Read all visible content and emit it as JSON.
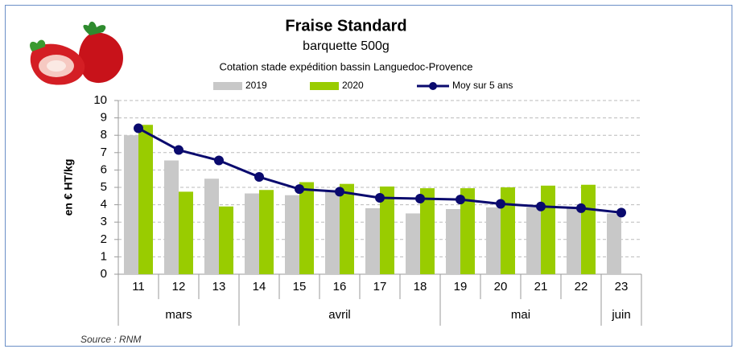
{
  "chart_data": {
    "type": "bar-line",
    "title": "Fraise Standard",
    "subtitle": "barquette 500g",
    "description": "Cotation stade expédition bassin Languedoc-Provence",
    "y_label": "en € HT/kg",
    "source": "Source : RNM",
    "categories": [
      "11",
      "12",
      "13",
      "14",
      "15",
      "16",
      "17",
      "18",
      "19",
      "20",
      "21",
      "22",
      "23"
    ],
    "category_groups": [
      "mars",
      null,
      null,
      "avril",
      null,
      null,
      null,
      null,
      "mai",
      null,
      null,
      null,
      "juin"
    ],
    "series": [
      {
        "name": "2019",
        "type": "bar",
        "color": "#c8c8c8",
        "values": [
          8.0,
          6.55,
          5.5,
          4.65,
          4.55,
          4.75,
          3.8,
          3.5,
          3.75,
          3.85,
          3.85,
          3.85,
          3.5
        ]
      },
      {
        "name": "2020",
        "type": "bar",
        "color": "#99cc00",
        "values": [
          8.6,
          4.75,
          3.9,
          4.85,
          5.3,
          5.2,
          5.05,
          4.95,
          4.95,
          5.0,
          5.1,
          5.15,
          null
        ]
      },
      {
        "name": "Moy sur 5 ans",
        "type": "line",
        "color": "#0a0a6e",
        "values": [
          8.4,
          7.15,
          6.55,
          5.6,
          4.9,
          4.75,
          4.4,
          4.35,
          4.3,
          4.05,
          3.9,
          3.8,
          3.55
        ]
      }
    ],
    "ylim": [
      0,
      10
    ],
    "yticks": [
      0,
      1,
      2,
      3,
      4,
      5,
      6,
      7,
      8,
      9,
      10
    ],
    "grid": true
  }
}
